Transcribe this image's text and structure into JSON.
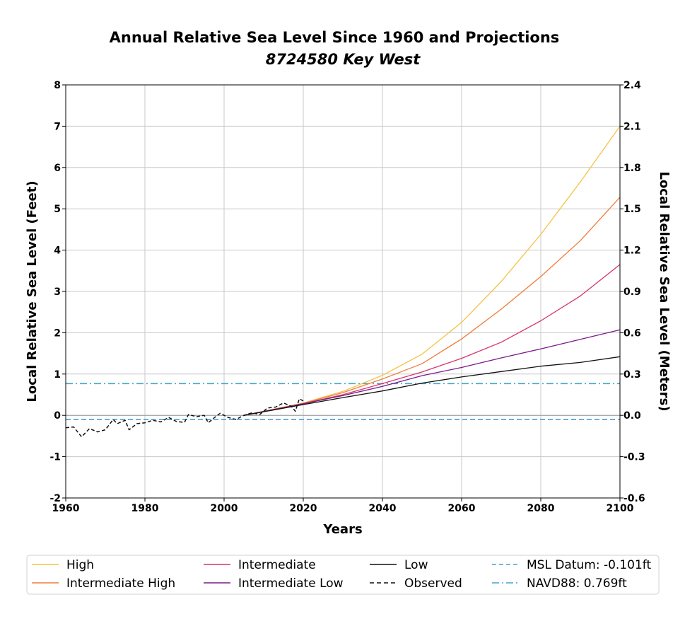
{
  "chart_data": {
    "type": "line",
    "title": "Annual Relative Sea Level Since 1960 and Projections",
    "subtitle": "8724580 Key West",
    "xlabel": "Years",
    "ylabel": "Local Relative Sea Level (Feet)",
    "ylabel_right": "Local Relative Sea Level (Meters)",
    "xlim": [
      1960,
      2100
    ],
    "ylim": [
      -2,
      8
    ],
    "ylim_right": [
      -0.6,
      2.4
    ],
    "x_ticks": [
      "1960",
      "1980",
      "2000",
      "2020",
      "2040",
      "2060",
      "2080",
      "2100"
    ],
    "y_ticks": [
      "-2",
      "-1",
      "0",
      "1",
      "2",
      "3",
      "4",
      "5",
      "6",
      "7",
      "8"
    ],
    "y_ticks_right": [
      "-0.6",
      "-0.3",
      "0.0",
      "0.3",
      "0.6",
      "0.9",
      "1.2",
      "1.5",
      "1.8",
      "2.1",
      "2.4"
    ],
    "grid": true,
    "legend_position": "bottom",
    "series": [
      {
        "name": "High",
        "color": "#f5c342",
        "style": "solid",
        "x": [
          2005,
          2020,
          2030,
          2040,
          2050,
          2060,
          2070,
          2080,
          2090,
          2100
        ],
        "y": [
          0.0,
          0.3,
          0.58,
          0.97,
          1.48,
          2.25,
          3.24,
          4.38,
          5.65,
          7.0
        ]
      },
      {
        "name": "Intermediate High",
        "color": "#ef7d3a",
        "style": "solid",
        "x": [
          2005,
          2020,
          2030,
          2040,
          2050,
          2060,
          2070,
          2080,
          2090,
          2100
        ],
        "y": [
          0.0,
          0.29,
          0.55,
          0.88,
          1.25,
          1.85,
          2.57,
          3.36,
          4.23,
          5.28
        ]
      },
      {
        "name": "Intermediate",
        "color": "#d6336c",
        "style": "solid",
        "x": [
          2005,
          2020,
          2030,
          2040,
          2050,
          2060,
          2070,
          2080,
          2090,
          2100
        ],
        "y": [
          0.0,
          0.28,
          0.5,
          0.77,
          1.05,
          1.38,
          1.77,
          2.29,
          2.89,
          3.65
        ]
      },
      {
        "name": "Intermediate Low",
        "color": "#7b1a8c",
        "style": "solid",
        "x": [
          2005,
          2020,
          2030,
          2040,
          2050,
          2060,
          2070,
          2080,
          2090,
          2100
        ],
        "y": [
          0.0,
          0.28,
          0.48,
          0.7,
          0.96,
          1.16,
          1.39,
          1.61,
          1.84,
          2.07
        ]
      },
      {
        "name": "Low",
        "color": "#111111",
        "style": "solid",
        "x": [
          2005,
          2020,
          2030,
          2040,
          2050,
          2060,
          2070,
          2080,
          2090,
          2100
        ],
        "y": [
          0.0,
          0.26,
          0.43,
          0.59,
          0.78,
          0.93,
          1.06,
          1.19,
          1.28,
          1.42
        ]
      },
      {
        "name": "Observed",
        "color": "#111111",
        "style": "dashed",
        "x": [
          1960,
          1962,
          1964,
          1966,
          1968,
          1970,
          1972,
          1973,
          1975,
          1976,
          1978,
          1980,
          1982,
          1984,
          1986,
          1988,
          1990,
          1991,
          1993,
          1995,
          1996,
          1998,
          1999,
          2001,
          2003,
          2005,
          2007,
          2009,
          2011,
          2013,
          2015,
          2017,
          2018,
          2019,
          2020
        ],
        "y": [
          -0.3,
          -0.28,
          -0.52,
          -0.32,
          -0.4,
          -0.35,
          -0.1,
          -0.2,
          -0.12,
          -0.35,
          -0.2,
          -0.18,
          -0.12,
          -0.16,
          -0.05,
          -0.15,
          -0.17,
          0.02,
          -0.03,
          0.0,
          -0.18,
          -0.02,
          0.05,
          -0.05,
          -0.1,
          0.0,
          0.06,
          0.02,
          0.18,
          0.2,
          0.3,
          0.22,
          0.1,
          0.4,
          0.35
        ]
      }
    ],
    "reference_lines": [
      {
        "name": "MSL Datum: -0.101ft",
        "value": -0.101,
        "color": "#4a9fd4",
        "style": "dashed"
      },
      {
        "name": "NAVD88: 0.769ft",
        "value": 0.769,
        "color": "#42a7c6",
        "style": "dashdot"
      }
    ]
  }
}
